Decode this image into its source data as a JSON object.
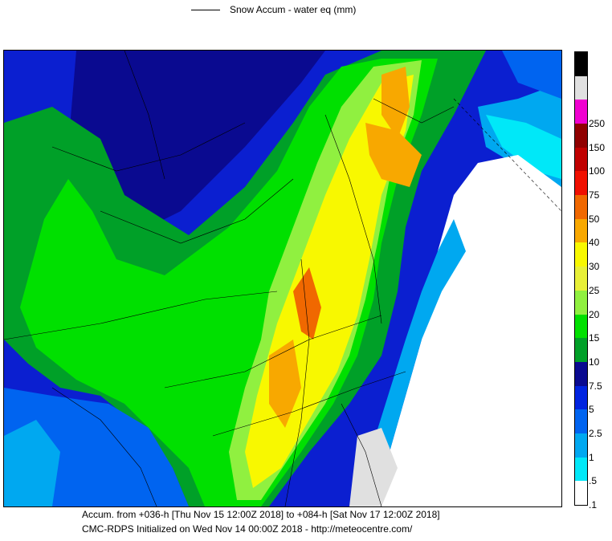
{
  "legend": {
    "series_label": "Snow Accum - water eq (mm)"
  },
  "colorbar": {
    "levels": [
      {
        "label": ".1",
        "color": "#ffffff"
      },
      {
        "label": ".5",
        "color": "#00e8f8"
      },
      {
        "label": "1",
        "color": "#00a8f0"
      },
      {
        "label": "2.5",
        "color": "#0064f0"
      },
      {
        "label": "5",
        "color": "#0024e0"
      },
      {
        "label": "7.5",
        "color": "#0a0a90"
      },
      {
        "label": "10",
        "color": "#00a028"
      },
      {
        "label": "15",
        "color": "#00e000"
      },
      {
        "label": "20",
        "color": "#90f040"
      },
      {
        "label": "25",
        "color": "#e8f038"
      },
      {
        "label": "30",
        "color": "#f8f800"
      },
      {
        "label": "40",
        "color": "#f8a800"
      },
      {
        "label": "50",
        "color": "#f06800"
      },
      {
        "label": "75",
        "color": "#f01000"
      },
      {
        "label": "100",
        "color": "#c00000"
      },
      {
        "label": "150",
        "color": "#900000"
      },
      {
        "label": "250",
        "color": "#f000d0"
      },
      {
        "label": "",
        "color": "#e0e0e0"
      },
      {
        "label": "",
        "color": "#000000"
      }
    ]
  },
  "footer": {
    "line1": "Accum. from +036-h [Thu Nov 15 12:00Z 2018] to +084-h [Sat Nov 17 12:00Z 2018]",
    "line2": "CMC-RDPS Initialized on Wed Nov 14 00:00Z 2018 - http://meteocentre.com/"
  }
}
